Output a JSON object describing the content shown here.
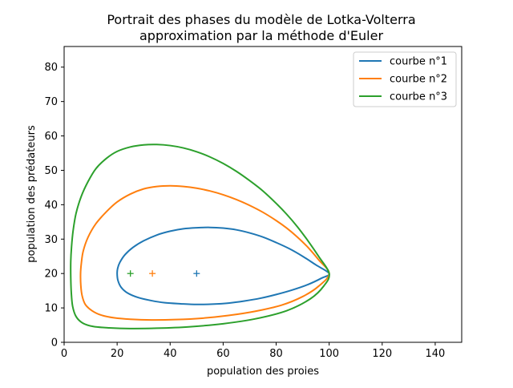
{
  "chart_data": {
    "type": "line",
    "title": "Portrait des phases du modèle de Lotka-Volterra",
    "subtitle": "approximation par la méthode d'Euler",
    "xlabel": "population des proies",
    "ylabel": "population des prédateurs",
    "xlim": [
      0,
      150
    ],
    "ylim": [
      0,
      86
    ],
    "xticks": [
      0,
      20,
      40,
      60,
      80,
      100,
      120,
      140
    ],
    "yticks": [
      0,
      10,
      20,
      30,
      40,
      50,
      60,
      70,
      80
    ],
    "grid": false,
    "legend_position": "top-right",
    "series": [
      {
        "name": "courbe n°1",
        "color": "#1f77b4",
        "x": [
          100,
          95,
          90,
          85,
          80,
          75,
          70,
          65,
          60,
          55,
          50,
          45,
          40,
          35,
          30,
          26,
          23,
          21,
          20.2,
          20,
          20.3,
          21.5,
          24,
          28,
          33,
          38,
          44,
          50,
          56,
          62,
          68,
          74,
          80,
          86,
          92,
          97,
          100
        ],
        "y": [
          20,
          22.5,
          25,
          27.2,
          29,
          30.6,
          31.8,
          32.7,
          33.2,
          33.4,
          33.3,
          33,
          32.3,
          31.2,
          29.5,
          27.6,
          25.5,
          23.2,
          21.5,
          20,
          18,
          16,
          14.3,
          13,
          12.1,
          11.5,
          11.2,
          11,
          11.1,
          11.4,
          12,
          12.8,
          13.9,
          15.2,
          16.8,
          18.6,
          20
        ]
      },
      {
        "name": "courbe n°2",
        "color": "#ff7f0e",
        "x": [
          100,
          96,
          92,
          88,
          84,
          80,
          75,
          70,
          65,
          60,
          55,
          50,
          45,
          40,
          35,
          30,
          25,
          20,
          16,
          12,
          9,
          7.2,
          6.5,
          6.2,
          6.3,
          6.8,
          8,
          10.5,
          14,
          19,
          25,
          33,
          42,
          52,
          62,
          72,
          82,
          90,
          96,
          100
        ],
        "y": [
          20,
          24,
          27.6,
          30.6,
          33.2,
          35.4,
          37.8,
          39.8,
          41.5,
          42.9,
          44,
          44.8,
          45.3,
          45.5,
          45.3,
          44.6,
          43.1,
          40.8,
          38,
          34.5,
          30.5,
          26.5,
          23,
          20,
          16.5,
          13.5,
          11,
          9.2,
          7.9,
          7.1,
          6.7,
          6.5,
          6.6,
          7,
          7.8,
          9,
          10.8,
          13.3,
          16.3,
          20
        ]
      },
      {
        "name": "courbe n°3",
        "color": "#2ca02c",
        "x": [
          100,
          96,
          92,
          88,
          84,
          80,
          75,
          70,
          65,
          60,
          55,
          50,
          45,
          40,
          35,
          30,
          25,
          20,
          16,
          12,
          9,
          6.5,
          4.5,
          3.4,
          2.8,
          2.5,
          2.5,
          2.7,
          3.2,
          4.5,
          7,
          11,
          17,
          25,
          35,
          47,
          60,
          72,
          84,
          93,
          98,
          100
        ],
        "y": [
          20,
          25,
          29.5,
          33.6,
          37.2,
          40.4,
          44,
          47,
          49.7,
          52,
          53.9,
          55.4,
          56.5,
          57.2,
          57.5,
          57.4,
          56.8,
          55.5,
          53.5,
          50.5,
          46.7,
          42.5,
          37.5,
          32.5,
          27.8,
          23.5,
          19,
          14.5,
          10.5,
          7.5,
          5.6,
          4.6,
          4.2,
          4,
          4.1,
          4.5,
          5.4,
          6.8,
          9.2,
          12.7,
          16.4,
          20
        ]
      }
    ],
    "markers": [
      {
        "x": 50,
        "y": 20,
        "color": "#1f77b4"
      },
      {
        "x": 33.3,
        "y": 20,
        "color": "#ff7f0e"
      },
      {
        "x": 25,
        "y": 20,
        "color": "#2ca02c"
      }
    ]
  }
}
